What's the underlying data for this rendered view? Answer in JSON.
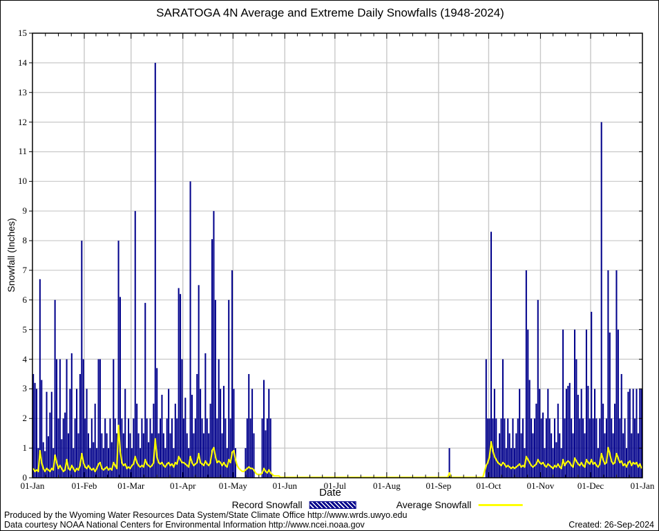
{
  "title": "SARATOGA 4N Average and Extreme Daily Snowfalls (1948-2024)",
  "y_axis": {
    "label": "Snowfall (Inches)",
    "ticks": [
      "0",
      "1",
      "2",
      "3",
      "4",
      "5",
      "6",
      "7",
      "8",
      "9",
      "10",
      "11",
      "12",
      "13",
      "14",
      "15"
    ]
  },
  "x_axis": {
    "label": "Date",
    "ticks": [
      "01-Jan",
      "01-Feb",
      "01-Mar",
      "01-Apr",
      "01-May",
      "01-Jun",
      "01-Jul",
      "01-Aug",
      "01-Sep",
      "01-Oct",
      "01-Nov",
      "01-Dec",
      "01-Jan"
    ]
  },
  "legend": {
    "record_label": "Record Snowfall",
    "average_label": "Average Snowfall"
  },
  "footer": {
    "line1": "Produced by the Wyoming Water Resources Data System/State Climate Office http://www.wrds.uwyo.edu",
    "line2": "Data courtesy NOAA National Centers for Environmental Information http://www.ncei.noaa.gov",
    "created": "Created: 26-Sep-2024"
  },
  "colors": {
    "bar": "#00008b",
    "average": "#ffff00",
    "grid": "#c8c8c8",
    "axis": "#000000",
    "background": "#ffffff"
  },
  "chart_data": {
    "type": "bar",
    "title": "SARATOGA 4N Average and Extreme Daily Snowfalls (1948-2024)",
    "xlabel": "Date",
    "ylabel": "Snowfall (Inches)",
    "ylim": [
      0,
      15
    ],
    "grid": true,
    "x_unit": "day_of_year",
    "legend_position": "bottom",
    "month_start_days": [
      1,
      32,
      60,
      91,
      121,
      152,
      182,
      213,
      244,
      274,
      305,
      335,
      366
    ],
    "series_names": [
      "Record Snowfall",
      "Average Snowfall"
    ],
    "months": [
      {
        "name": "Jan",
        "record": [
          3.5,
          3.2,
          3.0,
          1.0,
          6.7,
          3.3,
          1.2,
          0.9,
          2.9,
          1.4,
          2.2,
          2.9,
          1.0,
          6.0,
          4.0,
          2.0,
          4.0,
          1.3,
          2.0,
          2.2,
          4.0,
          1.5,
          3.0,
          4.2,
          1.0,
          2.0,
          3.0,
          1.5,
          3.5,
          8.0,
          4.0
        ],
        "average": [
          0.3,
          0.2,
          0.25,
          0.2,
          0.9,
          0.5,
          0.3,
          0.2,
          0.3,
          0.25,
          0.2,
          0.3,
          0.25,
          0.75,
          0.5,
          0.3,
          0.4,
          0.3,
          0.2,
          0.25,
          0.6,
          0.3,
          0.25,
          0.4,
          0.3,
          0.2,
          0.3,
          0.25,
          0.4,
          0.8,
          0.5
        ]
      },
      {
        "name": "Feb",
        "record": [
          2.0,
          3.0,
          1.5,
          1.0,
          2.0,
          1.2,
          2.5,
          1.0,
          4.0,
          4.0,
          1.5,
          1.0,
          2.0,
          1.5,
          1.0,
          2.0,
          1.2,
          4.0,
          2.0,
          1.5,
          8.0,
          6.1,
          2.0,
          1.5,
          3.0,
          1.0,
          2.0,
          1.5
        ],
        "average": [
          0.35,
          0.3,
          0.4,
          0.3,
          0.25,
          0.3,
          0.2,
          0.3,
          0.45,
          0.5,
          0.3,
          0.25,
          0.3,
          0.35,
          0.25,
          0.3,
          0.25,
          0.5,
          0.4,
          0.3,
          1.75,
          0.9,
          0.5,
          0.4,
          0.45,
          0.3,
          0.35,
          0.3
        ]
      },
      {
        "name": "Mar",
        "record": [
          1.0,
          2.0,
          9.0,
          2.5,
          1.5,
          1.0,
          2.0,
          1.5,
          5.9,
          2.0,
          1.2,
          2.0,
          1.5,
          2.5,
          14.0,
          3.7,
          1.5,
          2.0,
          2.8,
          1.5,
          1.0,
          2.0,
          3.0,
          1.5,
          2.0,
          1.0,
          2.5,
          2.0,
          6.4,
          6.2,
          4.0
        ],
        "average": [
          0.4,
          0.45,
          0.7,
          0.5,
          0.4,
          0.35,
          0.4,
          0.35,
          0.6,
          0.45,
          0.4,
          0.35,
          0.4,
          0.5,
          1.3,
          0.7,
          0.5,
          0.45,
          0.5,
          0.4,
          0.35,
          0.45,
          0.5,
          0.4,
          0.45,
          0.35,
          0.5,
          0.45,
          0.7,
          0.6,
          0.5
        ]
      },
      {
        "name": "Apr",
        "record": [
          2.0,
          2.7,
          1.5,
          1.0,
          10.0,
          2.8,
          1.5,
          2.0,
          3.5,
          6.5,
          3.0,
          2.0,
          1.5,
          4.2,
          2.0,
          1.5,
          2.5,
          8.05,
          9.0,
          6.0,
          2.0,
          4.0,
          3.0,
          1.5,
          3.1,
          2.0,
          1.0,
          6.0,
          2.0,
          7.0
        ],
        "average": [
          0.5,
          0.45,
          0.4,
          0.35,
          0.7,
          0.5,
          0.4,
          0.45,
          0.5,
          0.8,
          0.5,
          0.45,
          0.4,
          0.55,
          0.45,
          0.4,
          0.5,
          0.9,
          1.0,
          0.7,
          0.5,
          0.55,
          0.5,
          0.4,
          0.5,
          0.4,
          0.35,
          0.6,
          0.5,
          0.85
        ]
      },
      {
        "name": "May",
        "record": [
          3.0,
          1.0,
          0,
          0,
          0,
          0,
          0,
          1.0,
          2.0,
          3.5,
          2.0,
          3.0,
          1.5,
          0,
          0,
          0,
          0,
          2.0,
          3.3,
          1.6,
          2.0,
          3.0,
          2.0,
          0,
          0,
          0,
          0,
          0,
          0,
          0,
          0
        ],
        "average": [
          0.9,
          0.6,
          0.4,
          0.3,
          0.25,
          0.2,
          0.2,
          0.25,
          0.3,
          0.35,
          0.3,
          0.3,
          0.25,
          0.15,
          0.1,
          0.1,
          0.1,
          0.15,
          0.3,
          0.2,
          0.15,
          0.25,
          0.15,
          0.1,
          0.05,
          0.05,
          0.05,
          0.05,
          0,
          0,
          0
        ]
      },
      {
        "name": "Jun",
        "record": [
          0,
          0,
          0,
          0,
          0,
          0,
          0,
          0,
          0,
          0,
          0,
          0,
          0,
          0,
          0,
          0,
          0,
          0,
          0,
          0,
          0,
          0,
          0,
          0,
          0,
          0,
          0,
          0,
          0,
          0
        ],
        "average": [
          0,
          0,
          0,
          0,
          0,
          0,
          0,
          0,
          0,
          0,
          0,
          0,
          0,
          0,
          0,
          0,
          0,
          0,
          0,
          0,
          0,
          0,
          0,
          0,
          0,
          0,
          0,
          0,
          0,
          0
        ]
      },
      {
        "name": "Jul",
        "record": [
          0,
          0,
          0,
          0,
          0,
          0,
          0,
          0,
          0,
          0,
          0,
          0,
          0,
          0,
          0,
          0,
          0,
          0,
          0,
          0,
          0,
          0,
          0,
          0,
          0,
          0,
          0,
          0,
          0,
          0,
          0
        ],
        "average": [
          0,
          0,
          0,
          0,
          0,
          0,
          0,
          0,
          0,
          0,
          0,
          0,
          0,
          0,
          0,
          0,
          0,
          0,
          0,
          0,
          0,
          0,
          0,
          0,
          0,
          0,
          0,
          0,
          0,
          0,
          0
        ]
      },
      {
        "name": "Aug",
        "record": [
          0,
          0,
          0,
          0,
          0,
          0,
          0,
          0,
          0,
          0,
          0,
          0,
          0,
          0,
          0,
          0,
          0,
          0,
          0,
          0,
          0,
          0,
          0,
          0,
          0,
          0,
          0,
          0,
          0,
          0,
          0
        ],
        "average": [
          0,
          0,
          0,
          0,
          0,
          0,
          0,
          0,
          0,
          0,
          0,
          0,
          0,
          0,
          0,
          0,
          0,
          0,
          0,
          0,
          0,
          0,
          0,
          0,
          0,
          0,
          0,
          0,
          0,
          0,
          0
        ]
      },
      {
        "name": "Sep",
        "record": [
          0,
          0,
          0,
          0,
          0,
          0,
          1.0,
          0,
          0,
          0,
          0,
          0,
          0,
          0,
          0,
          0,
          0,
          0,
          0,
          0,
          0,
          0,
          0,
          0,
          0,
          0,
          0,
          0,
          4.0,
          2.0
        ],
        "average": [
          0,
          0,
          0,
          0,
          0,
          0,
          0.15,
          0,
          0,
          0,
          0,
          0,
          0,
          0,
          0,
          0,
          0,
          0,
          0,
          0,
          0,
          0,
          0,
          0,
          0,
          0,
          0,
          0.2,
          0.4,
          0.5
        ]
      },
      {
        "name": "Oct",
        "record": [
          2.0,
          8.3,
          2.0,
          3.0,
          2.0,
          1.0,
          1.5,
          2.0,
          4.0,
          2.0,
          1.0,
          2.0,
          1.5,
          1.0,
          2.0,
          1.0,
          1.5,
          2.0,
          3.0,
          1.5,
          2.0,
          1.0,
          7.0,
          5.0,
          3.3,
          2.0,
          1.5,
          2.0,
          2.5,
          6.0,
          3.0
        ],
        "average": [
          0.7,
          1.2,
          0.9,
          0.7,
          0.6,
          0.5,
          0.45,
          0.4,
          0.5,
          0.45,
          0.35,
          0.4,
          0.35,
          0.3,
          0.35,
          0.3,
          0.35,
          0.4,
          0.45,
          0.35,
          0.4,
          0.35,
          0.7,
          0.6,
          0.5,
          0.4,
          0.35,
          0.4,
          0.45,
          0.6,
          0.5
        ]
      },
      {
        "name": "Nov",
        "record": [
          2.0,
          2.2,
          1.0,
          2.0,
          3.0,
          2.0,
          1.5,
          1.0,
          2.0,
          1.2,
          2.5,
          1.5,
          1.0,
          5.0,
          2.0,
          3.0,
          3.1,
          3.2,
          2.0,
          1.5,
          5.0,
          4.0,
          2.8,
          2.0,
          3.0,
          2.0,
          1.5,
          5.0,
          3.1,
          2.0
        ],
        "average": [
          0.45,
          0.5,
          0.4,
          0.35,
          0.45,
          0.4,
          0.35,
          0.3,
          0.4,
          0.35,
          0.45,
          0.35,
          0.3,
          0.6,
          0.4,
          0.5,
          0.55,
          0.5,
          0.4,
          0.35,
          0.65,
          0.55,
          0.45,
          0.4,
          0.5,
          0.4,
          0.35,
          0.6,
          0.5,
          0.45
        ]
      },
      {
        "name": "Dec",
        "record": [
          5.6,
          2.0,
          3.0,
          2.0,
          1.0,
          2.0,
          12.0,
          2.5,
          1.5,
          2.0,
          7.0,
          4.9,
          2.0,
          1.5,
          2.5,
          7.0,
          5.0,
          2.0,
          3.5,
          1.5,
          2.0,
          1.0,
          2.9,
          3.0,
          1.5,
          3.0,
          2.0,
          3.0,
          1.5,
          3.0,
          3.0
        ],
        "average": [
          0.6,
          0.45,
          0.5,
          0.4,
          0.35,
          0.45,
          0.8,
          0.6,
          0.45,
          0.5,
          1.0,
          0.8,
          0.55,
          0.45,
          0.5,
          0.8,
          0.65,
          0.5,
          0.55,
          0.4,
          0.45,
          0.35,
          0.5,
          0.55,
          0.4,
          0.5,
          0.45,
          0.5,
          0.35,
          0.45,
          0.3
        ]
      }
    ]
  }
}
